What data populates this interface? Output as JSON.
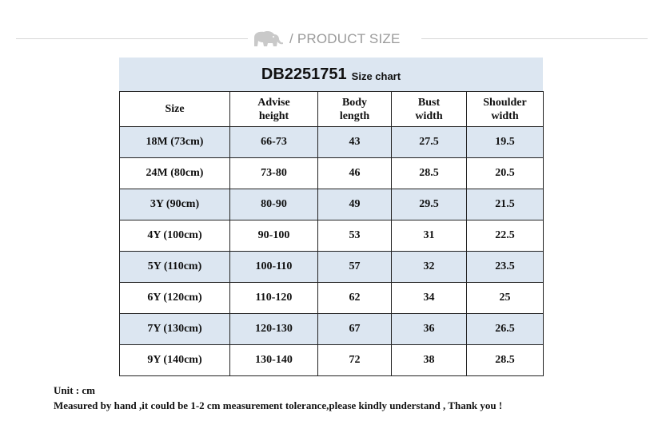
{
  "header": {
    "title": "/ PRODUCT SIZE",
    "icon": "elephant-icon"
  },
  "chart": {
    "code": "DB2251751",
    "subtitle": "Size chart"
  },
  "table": {
    "headers": [
      [
        "Size"
      ],
      [
        "Advise",
        "height"
      ],
      [
        "Body",
        "length"
      ],
      [
        "Bust",
        "width"
      ],
      [
        "Shoulder",
        "width"
      ]
    ],
    "rows": [
      [
        "18M (73cm)",
        "66-73",
        "43",
        "27.5",
        "19.5"
      ],
      [
        "24M (80cm)",
        "73-80",
        "46",
        "28.5",
        "20.5"
      ],
      [
        "3Y (90cm)",
        "80-90",
        "49",
        "29.5",
        "21.5"
      ],
      [
        "4Y (100cm)",
        "90-100",
        "53",
        "31",
        "22.5"
      ],
      [
        "5Y (110cm)",
        "100-110",
        "57",
        "32",
        "23.5"
      ],
      [
        "6Y (120cm)",
        "110-120",
        "62",
        "34",
        "25"
      ],
      [
        "7Y (130cm)",
        "120-130",
        "67",
        "36",
        "26.5"
      ],
      [
        "9Y (140cm)",
        "130-140",
        "72",
        "38",
        "28.5"
      ]
    ],
    "shade_color": "#dce6f1"
  },
  "footer": {
    "unit": "Unit : cm",
    "note": "Measured by hand ,it could be 1-2 cm measurement tolerance,please kindly understand , Thank you !"
  }
}
